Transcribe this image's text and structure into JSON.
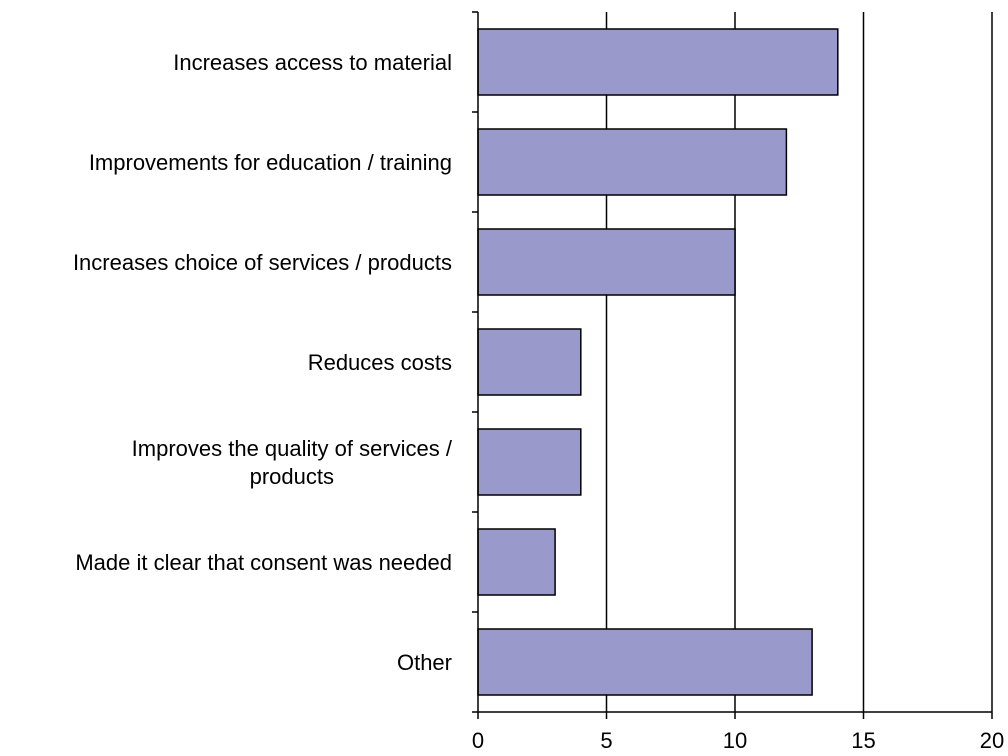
{
  "chart_data": {
    "type": "bar",
    "orientation": "horizontal",
    "title": "",
    "xlabel": "",
    "ylabel": "",
    "categories": [
      "Increases access to material",
      "Improvements for education / training",
      "Increases choice of services / products",
      "Reduces costs",
      "Improves the quality of services / products",
      "Made it clear that consent was needed",
      "Other"
    ],
    "category_label_lines": [
      [
        "Increases access to material"
      ],
      [
        "Improvements for education / training"
      ],
      [
        "Increases choice of services / products"
      ],
      [
        "Reduces costs"
      ],
      [
        "Improves the quality of services /",
        "products"
      ],
      [
        "Made it clear that consent was needed"
      ],
      [
        "Other"
      ]
    ],
    "values": [
      14,
      12,
      10,
      4,
      4,
      3,
      13
    ],
    "xlim": [
      0,
      20
    ],
    "x_ticks": [
      0,
      5,
      10,
      15,
      20
    ],
    "x_tick_labels": [
      "0",
      "5",
      "10",
      "15",
      "20"
    ],
    "grid": "vertical major gridlines",
    "legend": "none",
    "colors": {
      "bar_fill": "#9999cc",
      "bar_stroke": "#000000",
      "grid": "#000000"
    }
  }
}
